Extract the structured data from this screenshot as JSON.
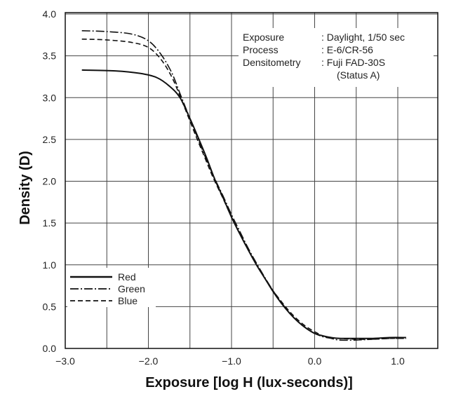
{
  "chart_data": {
    "type": "line",
    "xlabel": "Exposure [log H (lux-seconds)]",
    "ylabel": "Density (D)",
    "xlim": [
      -3.0,
      1.5
    ],
    "ylim": [
      0.0,
      4.0
    ],
    "x_ticks": [
      -3.0,
      -2.0,
      -1.0,
      0.0,
      1.0
    ],
    "x_tick_labels": [
      "−3.0",
      "−2.0",
      "−1.0",
      "0.0",
      "1.0"
    ],
    "y_ticks": [
      0.0,
      0.5,
      1.0,
      1.5,
      2.0,
      2.5,
      3.0,
      3.5,
      4.0
    ],
    "y_tick_labels": [
      "0.0",
      "0.5",
      "1.0",
      "1.5",
      "2.0",
      "2.5",
      "3.0",
      "3.5",
      "4.0"
    ],
    "grid": true,
    "legend_position": "bottom-left",
    "series": [
      {
        "name": "Red",
        "style": "solid",
        "points": [
          [
            -2.8,
            3.33
          ],
          [
            -2.4,
            3.32
          ],
          [
            -2.1,
            3.29
          ],
          [
            -1.9,
            3.24
          ],
          [
            -1.75,
            3.14
          ],
          [
            -1.62,
            3.0
          ],
          [
            -1.5,
            2.75
          ],
          [
            -1.4,
            2.52
          ],
          [
            -1.3,
            2.28
          ],
          [
            -1.2,
            2.02
          ],
          [
            -1.1,
            1.8
          ],
          [
            -1.0,
            1.57
          ],
          [
            -0.9,
            1.37
          ],
          [
            -0.8,
            1.18
          ],
          [
            -0.7,
            1.0
          ],
          [
            -0.6,
            0.84
          ],
          [
            -0.5,
            0.68
          ],
          [
            -0.4,
            0.54
          ],
          [
            -0.3,
            0.42
          ],
          [
            -0.2,
            0.32
          ],
          [
            -0.1,
            0.24
          ],
          [
            0.0,
            0.18
          ],
          [
            0.1,
            0.15
          ],
          [
            0.2,
            0.13
          ],
          [
            0.3,
            0.12
          ],
          [
            0.5,
            0.12
          ],
          [
            0.7,
            0.12
          ],
          [
            0.9,
            0.13
          ],
          [
            1.1,
            0.13
          ]
        ]
      },
      {
        "name": "Green",
        "style": "dash-dot",
        "points": [
          [
            -2.8,
            3.8
          ],
          [
            -2.5,
            3.79
          ],
          [
            -2.2,
            3.76
          ],
          [
            -2.0,
            3.68
          ],
          [
            -1.85,
            3.52
          ],
          [
            -1.72,
            3.3
          ],
          [
            -1.62,
            3.05
          ],
          [
            -1.52,
            2.8
          ],
          [
            -1.42,
            2.55
          ],
          [
            -1.32,
            2.3
          ],
          [
            -1.22,
            2.07
          ],
          [
            -1.1,
            1.82
          ],
          [
            -1.0,
            1.6
          ],
          [
            -0.9,
            1.4
          ],
          [
            -0.8,
            1.2
          ],
          [
            -0.7,
            1.02
          ],
          [
            -0.6,
            0.85
          ],
          [
            -0.5,
            0.69
          ],
          [
            -0.4,
            0.55
          ],
          [
            -0.3,
            0.42
          ],
          [
            -0.2,
            0.32
          ],
          [
            -0.1,
            0.24
          ],
          [
            0.0,
            0.18
          ],
          [
            0.1,
            0.14
          ],
          [
            0.2,
            0.12
          ],
          [
            0.3,
            0.1
          ],
          [
            0.5,
            0.1
          ],
          [
            0.7,
            0.11
          ],
          [
            0.9,
            0.12
          ],
          [
            1.1,
            0.12
          ]
        ]
      },
      {
        "name": "Blue",
        "style": "dashed",
        "points": [
          [
            -2.8,
            3.7
          ],
          [
            -2.5,
            3.69
          ],
          [
            -2.2,
            3.66
          ],
          [
            -2.0,
            3.6
          ],
          [
            -1.85,
            3.46
          ],
          [
            -1.72,
            3.25
          ],
          [
            -1.62,
            3.02
          ],
          [
            -1.52,
            2.77
          ],
          [
            -1.42,
            2.52
          ],
          [
            -1.32,
            2.28
          ],
          [
            -1.22,
            2.04
          ],
          [
            -1.1,
            1.79
          ],
          [
            -1.0,
            1.57
          ],
          [
            -0.9,
            1.37
          ],
          [
            -0.8,
            1.18
          ],
          [
            -0.7,
            1.0
          ],
          [
            -0.6,
            0.84
          ],
          [
            -0.5,
            0.69
          ],
          [
            -0.4,
            0.56
          ],
          [
            -0.3,
            0.44
          ],
          [
            -0.2,
            0.34
          ],
          [
            -0.1,
            0.26
          ],
          [
            0.0,
            0.2
          ],
          [
            0.1,
            0.15
          ],
          [
            0.2,
            0.13
          ],
          [
            0.3,
            0.12
          ],
          [
            0.5,
            0.11
          ],
          [
            0.7,
            0.11
          ],
          [
            0.9,
            0.12
          ],
          [
            1.1,
            0.12
          ]
        ]
      }
    ],
    "annotations": [
      {
        "label": "Exposure",
        "value": ": Daylight, 1/50 sec"
      },
      {
        "label": "Process",
        "value": ": E-6/CR-56"
      },
      {
        "label": "Densitometry",
        "value": ": Fuji FAD-30S"
      },
      {
        "label": "",
        "value": "(Status A)"
      }
    ]
  },
  "colors": {
    "lines": "#111111",
    "grid": "#444444",
    "background": "#ffffff"
  }
}
